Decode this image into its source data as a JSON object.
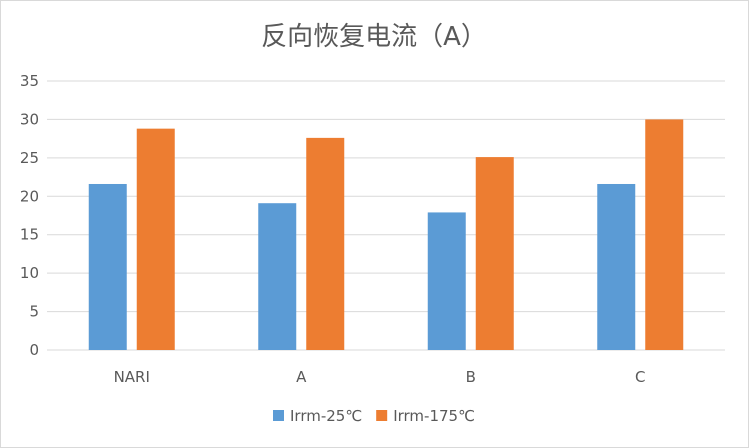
{
  "chart_data": {
    "type": "bar",
    "title": "反向恢复电流（A）",
    "categories": [
      "NARI",
      "A",
      "B",
      "C"
    ],
    "series": [
      {
        "name": "Irrm-25℃",
        "color": "#5b9bd5",
        "values": [
          21.6,
          19.1,
          17.9,
          21.6
        ]
      },
      {
        "name": "Irrm-175℃",
        "color": "#ed7d31",
        "values": [
          28.8,
          27.6,
          25.1,
          30.0
        ]
      }
    ],
    "yticks": [
      "0",
      "5",
      "10",
      "15",
      "20",
      "25",
      "30",
      "35"
    ],
    "ylim": [
      0,
      35
    ],
    "grid": true,
    "gridline_color": "#d9d9d9",
    "legend_position": "bottom"
  }
}
